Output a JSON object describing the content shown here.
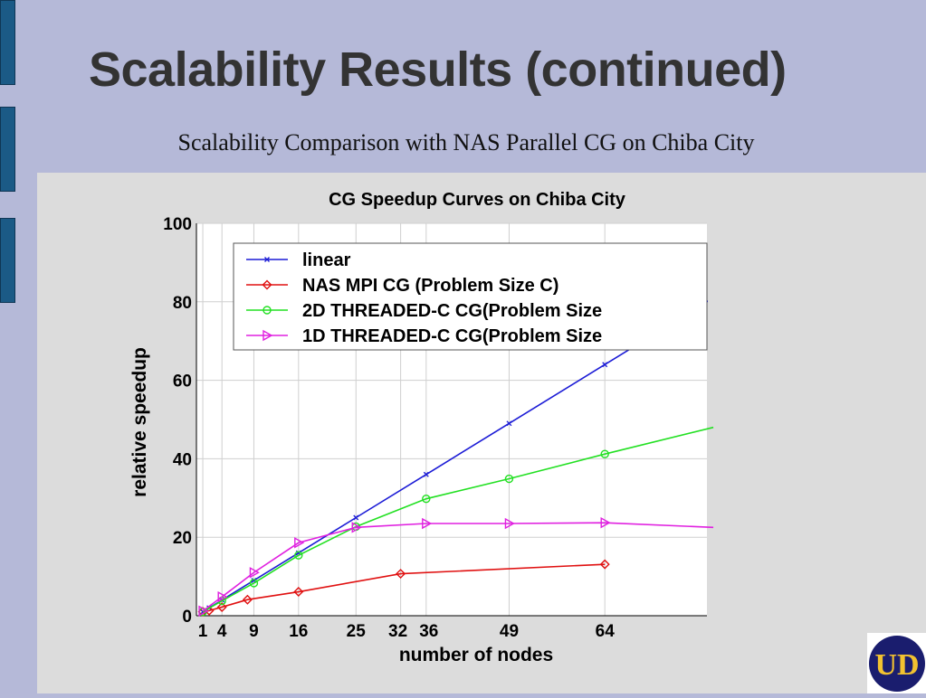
{
  "slide": {
    "title": "Scalability Results (continued)",
    "subtitle": "Scalability Comparison with NAS Parallel CG on Chiba City"
  },
  "logo": {
    "text": "UD",
    "bg": "#1a1d6e",
    "fg": "#f2c230"
  },
  "chart_data": {
    "type": "line",
    "title": "CG Speedup Curves on Chiba City",
    "xlabel": "number of nodes",
    "ylabel": "relative speedup",
    "xticks": [
      1,
      4,
      9,
      16,
      25,
      32,
      36,
      49,
      64
    ],
    "xtick_labels": [
      "1",
      "4",
      "9",
      "16",
      "25",
      "32",
      "36",
      "49",
      "64"
    ],
    "yticks": [
      0,
      20,
      40,
      60,
      80,
      100
    ],
    "xlim": [
      0,
      80
    ],
    "ylim": [
      0,
      100
    ],
    "grid": true,
    "legend_position": "top-right",
    "series": [
      {
        "name": "linear",
        "color": "#1c1cd6",
        "marker": "x",
        "x": [
          1,
          2,
          4,
          9,
          16,
          25,
          36,
          49,
          64,
          81
        ],
        "y": [
          1,
          2,
          4,
          9,
          16,
          25,
          36,
          49,
          64,
          81
        ]
      },
      {
        "name": "NAS MPI CG (Problem Size C)",
        "color": "#e01010",
        "marker": "diamond",
        "x": [
          1,
          2,
          4,
          8,
          16,
          32,
          64
        ],
        "y": [
          1,
          1.3,
          2.2,
          4.1,
          6.1,
          10.7,
          13.1
        ]
      },
      {
        "name": "2D THREADED-C CG(Problem Size",
        "color": "#22e022",
        "marker": "circle",
        "x": [
          1,
          4,
          9,
          16,
          25,
          36,
          49,
          64,
          81
        ],
        "y": [
          1,
          3.8,
          8.3,
          15.4,
          22.7,
          29.8,
          34.9,
          41.2,
          48
        ]
      },
      {
        "name": "1D THREADED-C CG(Problem Size",
        "color": "#e020e0",
        "marker": "triangle",
        "x": [
          1,
          4,
          9,
          16,
          25,
          36,
          49,
          64,
          81
        ],
        "y": [
          1.2,
          4.8,
          11,
          18.6,
          22.5,
          23.5,
          23.5,
          23.7,
          22.5
        ]
      }
    ]
  }
}
